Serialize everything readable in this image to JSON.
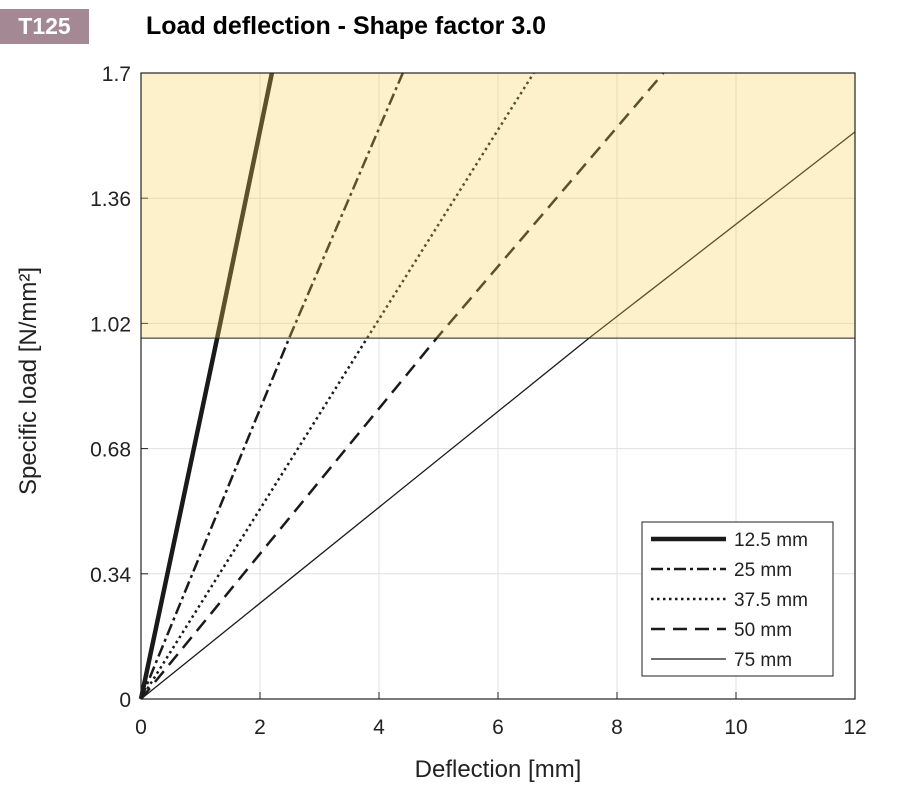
{
  "badge": "T125",
  "chart_data": {
    "type": "line",
    "title": "Load deflection - Shape factor 3.0",
    "xlabel": "Deflection  [mm]",
    "ylabel": "Specific load [N/mm²]",
    "xlim": [
      0,
      12
    ],
    "ylim": [
      0,
      1.7
    ],
    "xticks": [
      0,
      2,
      4,
      6,
      8,
      10,
      12
    ],
    "yticks": [
      0,
      0.34,
      0.68,
      1.02,
      1.36,
      1.7
    ],
    "grid": true,
    "shaded_region": {
      "ymin": 0.98,
      "ymax": 1.7,
      "color": "#fdf3cc"
    },
    "legend_position": "bottom-right",
    "series": [
      {
        "name": "12.5 mm",
        "style": "solid-thick",
        "x": [
          0,
          1.28,
          2.2
        ],
        "y": [
          0,
          0.98,
          1.7
        ]
      },
      {
        "name": "25 mm",
        "style": "dashdot",
        "x": [
          0,
          2.49,
          4.4
        ],
        "y": [
          0,
          0.98,
          1.7
        ]
      },
      {
        "name": "37.5 mm",
        "style": "dotted",
        "x": [
          0,
          3.8,
          6.6
        ],
        "y": [
          0,
          0.98,
          1.7
        ]
      },
      {
        "name": "50 mm",
        "style": "dashed",
        "x": [
          0,
          4.97,
          8.78
        ],
        "y": [
          0,
          0.98,
          1.7
        ]
      },
      {
        "name": "75 mm",
        "style": "solid-thin",
        "x": [
          0,
          7.53,
          12
        ],
        "y": [
          0,
          0.98,
          1.54
        ]
      }
    ]
  }
}
